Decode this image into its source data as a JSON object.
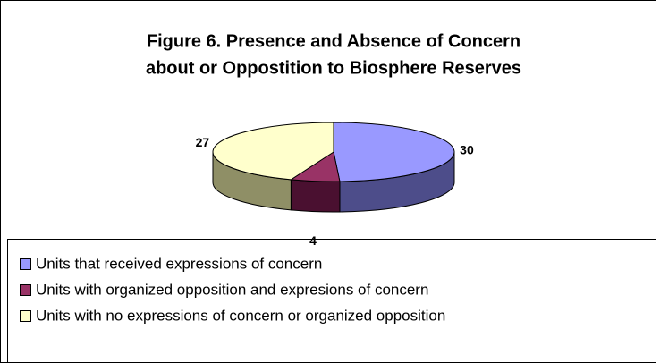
{
  "chart_data": {
    "type": "pie",
    "title": [
      "Figure 6. Presence and Absence of Concern",
      "about or Oppostition to Biosphere Reserves"
    ],
    "categories": [
      "Units that received expressions of concern",
      "Units with organized opposition and expresions of concern",
      "Units with no expressions of concern or organized opposition"
    ],
    "values": [
      30,
      4,
      27
    ],
    "colors": [
      "#9999ff",
      "#993366",
      "#ffffcc"
    ],
    "side_colors": [
      "#4d4d8a",
      "#4a1030",
      "#8f8f66"
    ],
    "legend": "bottom"
  }
}
